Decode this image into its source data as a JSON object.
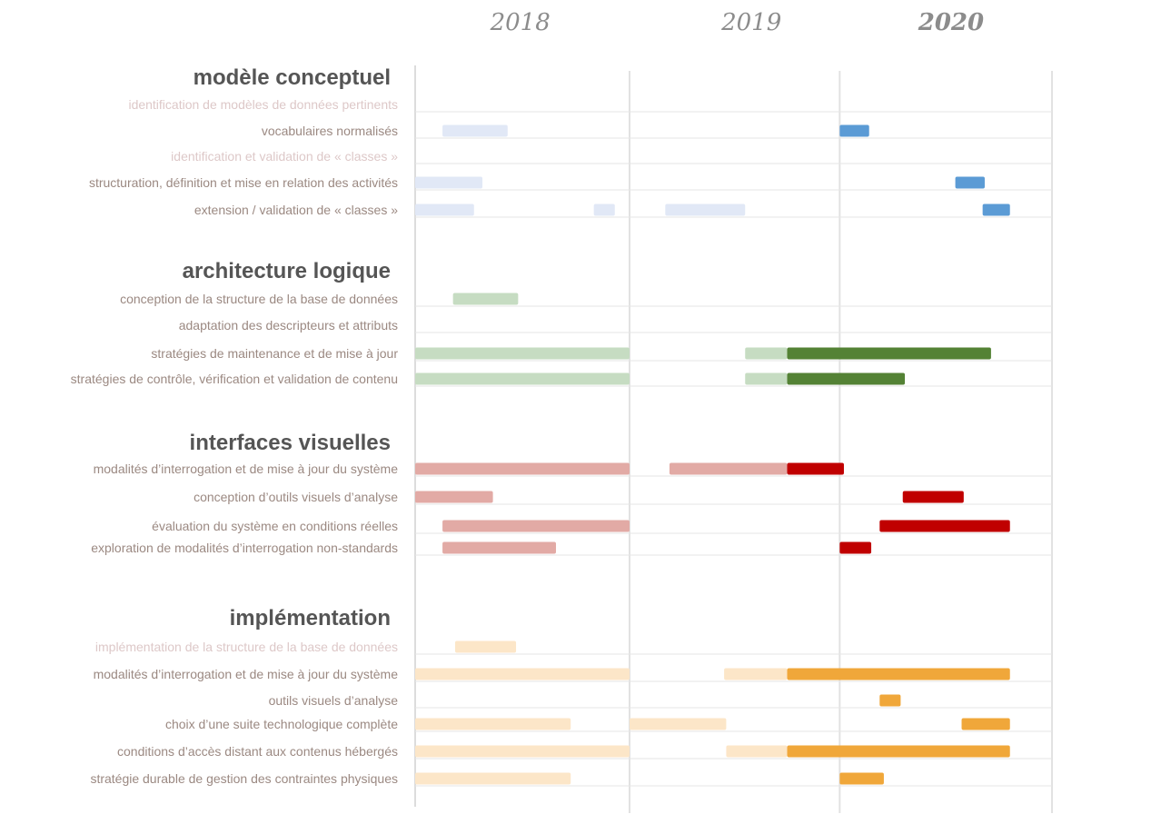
{
  "chart_data": {
    "type": "gantt",
    "x_unit": "years",
    "xlim": [
      2017.9,
      2020.93
    ],
    "years": [
      {
        "label": "2018",
        "x": 2018.4,
        "bold": false
      },
      {
        "label": "2019",
        "x": 2019.5,
        "bold": false
      },
      {
        "label": "2020",
        "x": 2020.45,
        "bold": true
      }
    ],
    "gridlines": [
      2018.92,
      2019.92,
      2020.93
    ],
    "sections": [
      {
        "title": "modèle conceptuel",
        "color_light": "#e1e8f6",
        "color_dark": "#5b9bd5",
        "tasks": [
          {
            "label": "identification de modèles de données pertinents",
            "faded": true,
            "bars": []
          },
          {
            "label": "vocabulaires normalisés",
            "faded": false,
            "bars": [
              {
                "start": 2018.03,
                "end": 2018.34,
                "tone": "light"
              },
              {
                "start": 2019.92,
                "end": 2020.06,
                "tone": "dark"
              }
            ]
          },
          {
            "label": "identification et validation de « classes »",
            "faded": true,
            "bars": []
          },
          {
            "label": "structuration, définition et mise en relation des activités",
            "faded": false,
            "bars": [
              {
                "start": 2017.9,
                "end": 2018.22,
                "tone": "light"
              },
              {
                "start": 2020.47,
                "end": 2020.61,
                "tone": "dark"
              }
            ]
          },
          {
            "label": "extension / validation de « classes »",
            "faded": false,
            "bars": [
              {
                "start": 2017.9,
                "end": 2018.18,
                "tone": "light"
              },
              {
                "start": 2018.75,
                "end": 2018.85,
                "tone": "light"
              },
              {
                "start": 2019.09,
                "end": 2019.47,
                "tone": "light"
              },
              {
                "start": 2020.6,
                "end": 2020.73,
                "tone": "dark"
              }
            ]
          }
        ]
      },
      {
        "title": "architecture logique",
        "color_light": "#c6dcc2",
        "color_dark": "#548235",
        "tasks": [
          {
            "label": "conception de la structure de la base de données",
            "faded": false,
            "bars": [
              {
                "start": 2018.08,
                "end": 2018.39,
                "tone": "light"
              }
            ]
          },
          {
            "label": "adaptation des descripteurs et attributs",
            "faded": false,
            "bars": []
          },
          {
            "label": "stratégies de maintenance et de mise à jour",
            "faded": false,
            "bars": [
              {
                "start": 2017.9,
                "end": 2018.92,
                "tone": "light"
              },
              {
                "start": 2019.47,
                "end": 2019.67,
                "tone": "light"
              },
              {
                "start": 2019.67,
                "end": 2020.64,
                "tone": "dark"
              }
            ]
          },
          {
            "label": "stratégies de contrôle, vérification et validation de contenu",
            "faded": false,
            "bars": [
              {
                "start": 2017.9,
                "end": 2018.92,
                "tone": "light"
              },
              {
                "start": 2019.47,
                "end": 2019.67,
                "tone": "light"
              },
              {
                "start": 2019.67,
                "end": 2020.23,
                "tone": "dark"
              }
            ]
          }
        ]
      },
      {
        "title": "interfaces visuelles",
        "color_light": "#e2aaa5",
        "color_dark": "#c00000",
        "tasks": [
          {
            "label": "modalités d’interrogation et de mise à jour du système",
            "faded": false,
            "bars": [
              {
                "start": 2017.9,
                "end": 2018.92,
                "tone": "light"
              },
              {
                "start": 2019.11,
                "end": 2019.67,
                "tone": "light"
              },
              {
                "start": 2019.67,
                "end": 2019.94,
                "tone": "dark"
              }
            ]
          },
          {
            "label": "conception d’outils visuels d’analyse",
            "faded": false,
            "bars": [
              {
                "start": 2017.9,
                "end": 2018.27,
                "tone": "light"
              },
              {
                "start": 2020.22,
                "end": 2020.51,
                "tone": "dark"
              }
            ]
          },
          {
            "label": "évaluation du système en conditions réelles",
            "faded": false,
            "bars": [
              {
                "start": 2018.03,
                "end": 2018.92,
                "tone": "light"
              },
              {
                "start": 2020.11,
                "end": 2020.73,
                "tone": "dark"
              }
            ]
          },
          {
            "label": "exploration de modalités d’interrogation non-standards",
            "faded": false,
            "bars": [
              {
                "start": 2018.03,
                "end": 2018.57,
                "tone": "light"
              },
              {
                "start": 2019.92,
                "end": 2020.07,
                "tone": "dark"
              }
            ]
          }
        ]
      },
      {
        "title": "implémentation",
        "color_light": "#fce6c8",
        "color_dark": "#f0a73a",
        "tasks": [
          {
            "label": "implémentation de la structure de la base de données",
            "faded": true,
            "bars": [
              {
                "start": 2018.09,
                "end": 2018.38,
                "tone": "light"
              }
            ]
          },
          {
            "label": "modalités d’interrogation et de mise à jour du système",
            "faded": false,
            "bars": [
              {
                "start": 2017.9,
                "end": 2018.92,
                "tone": "light"
              },
              {
                "start": 2019.37,
                "end": 2019.67,
                "tone": "light"
              },
              {
                "start": 2019.67,
                "end": 2020.73,
                "tone": "dark"
              }
            ]
          },
          {
            "label": "outils visuels d’analyse",
            "faded": false,
            "bars": [
              {
                "start": 2020.11,
                "end": 2020.21,
                "tone": "dark"
              }
            ]
          },
          {
            "label": "choix d’une suite technologique complète",
            "faded": false,
            "bars": [
              {
                "start": 2017.9,
                "end": 2018.64,
                "tone": "light"
              },
              {
                "start": 2018.92,
                "end": 2019.38,
                "tone": "light"
              },
              {
                "start": 2020.5,
                "end": 2020.73,
                "tone": "dark"
              }
            ]
          },
          {
            "label": "conditions d’accès distant aux contenus hébergés",
            "faded": false,
            "bars": [
              {
                "start": 2017.9,
                "end": 2018.92,
                "tone": "light"
              },
              {
                "start": 2019.38,
                "end": 2019.67,
                "tone": "light"
              },
              {
                "start": 2019.67,
                "end": 2020.73,
                "tone": "dark"
              }
            ]
          },
          {
            "label": "stratégie durable de gestion des contraintes physiques",
            "faded": false,
            "bars": [
              {
                "start": 2017.9,
                "end": 2018.64,
                "tone": "light"
              },
              {
                "start": 2019.92,
                "end": 2020.13,
                "tone": "dark"
              }
            ]
          }
        ]
      }
    ]
  }
}
